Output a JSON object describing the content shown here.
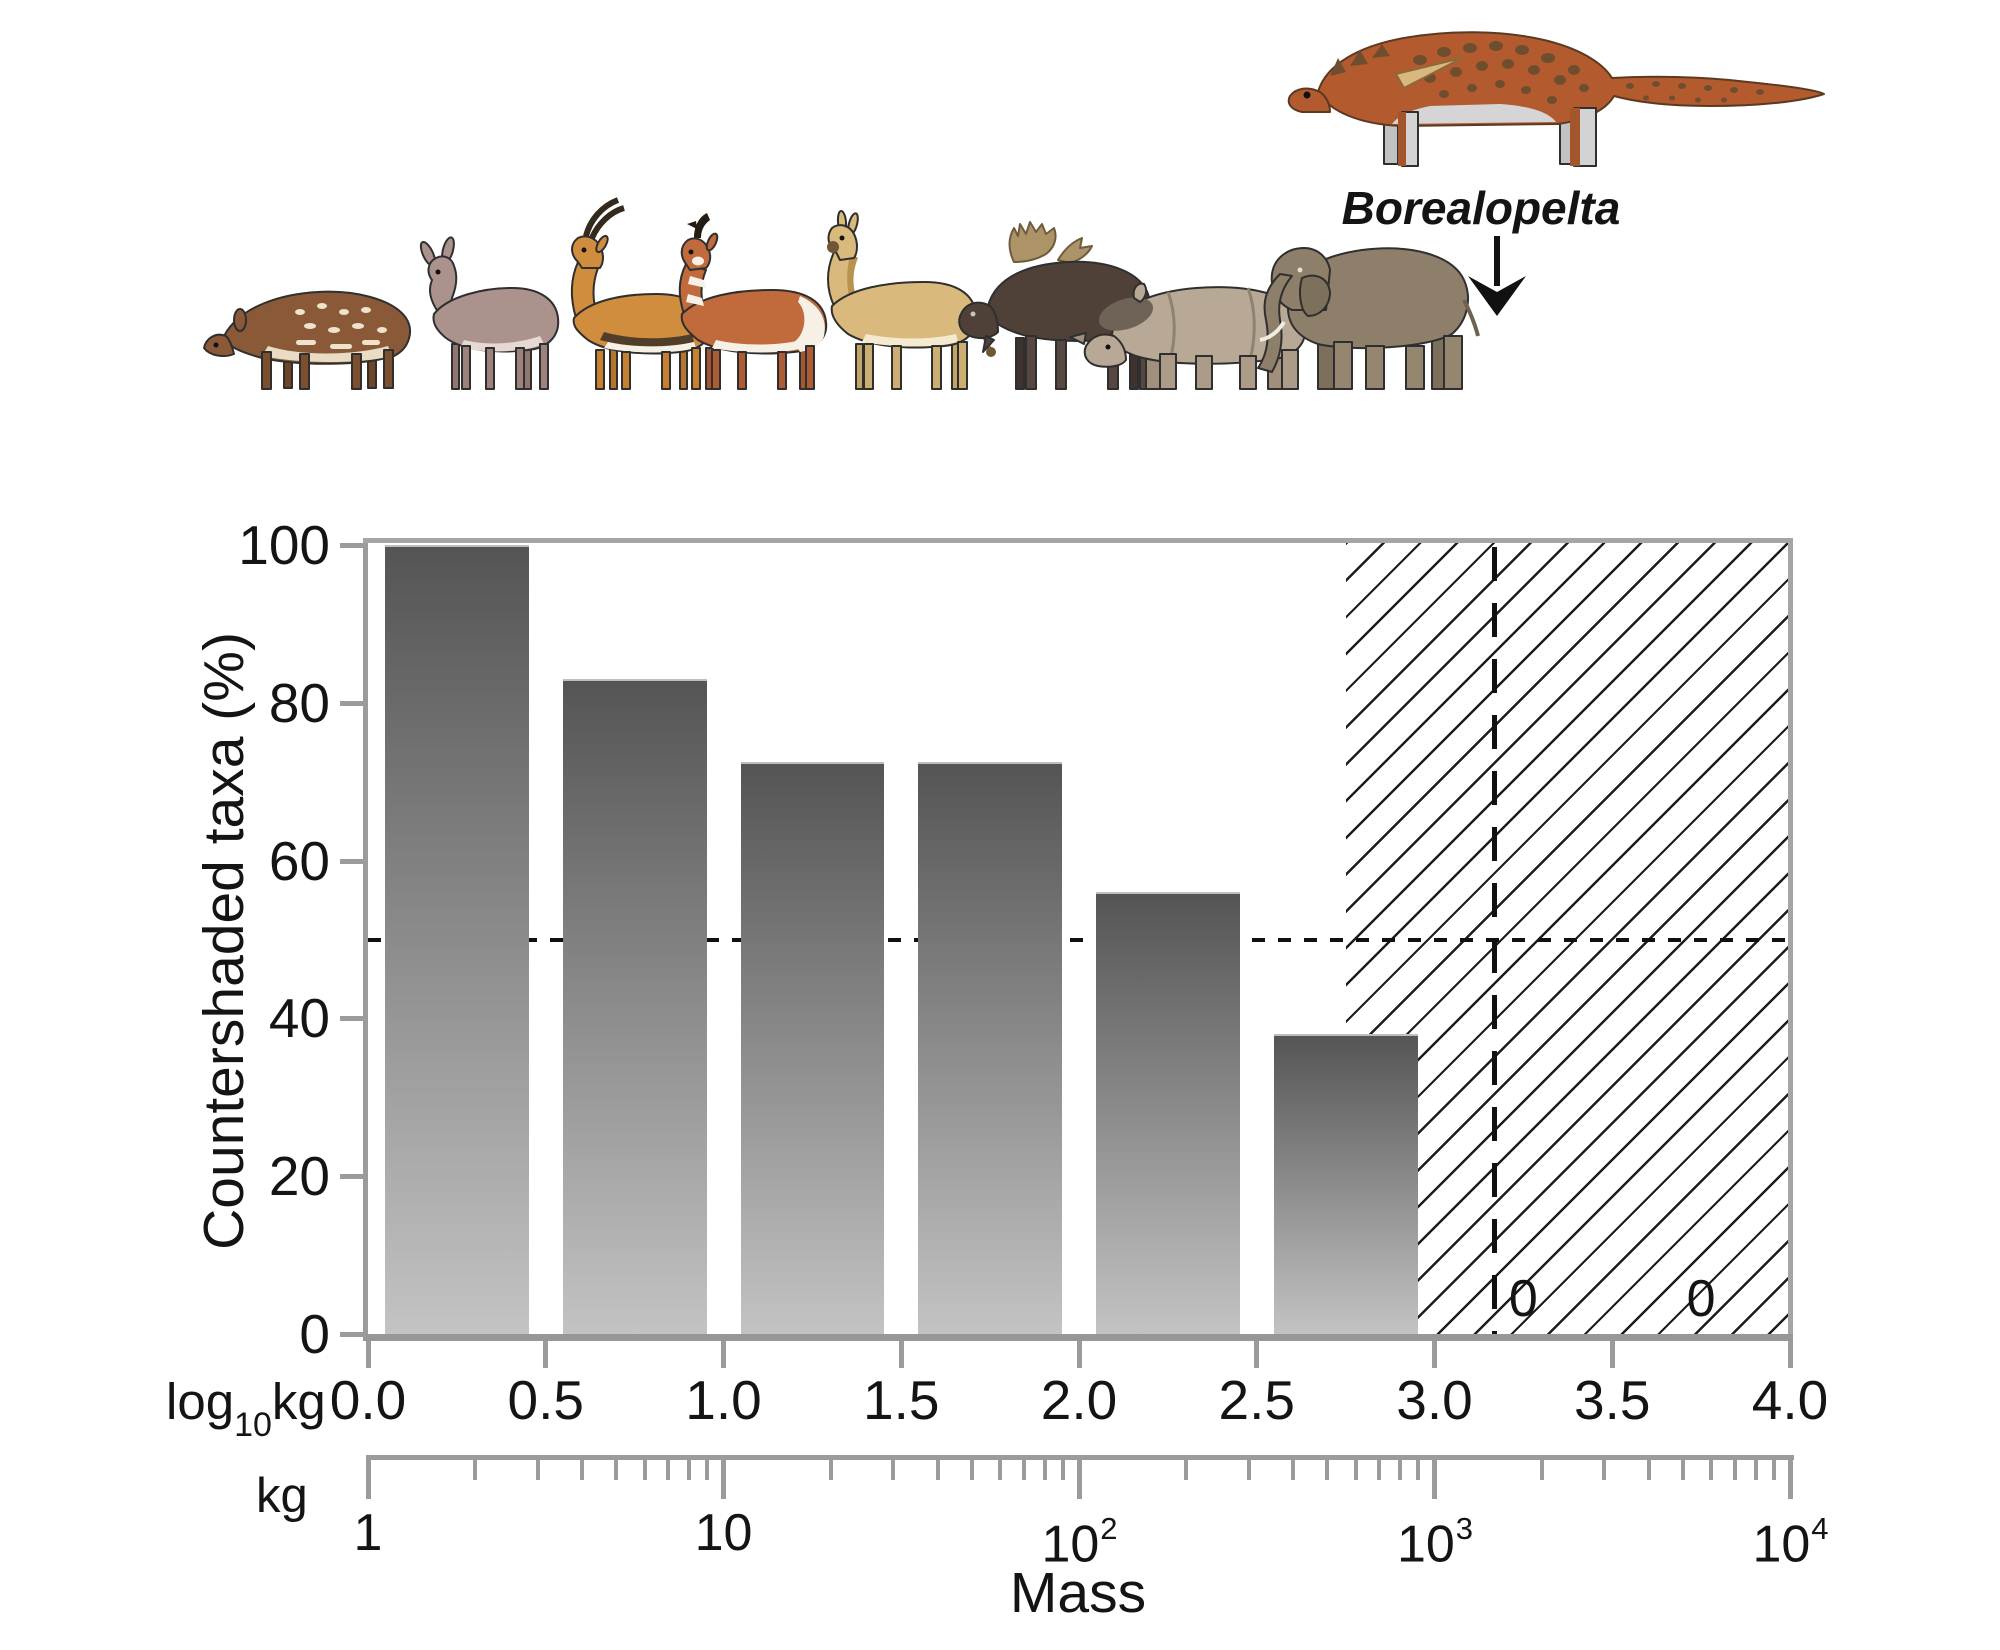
{
  "annotation": {
    "label": "Borealopelta"
  },
  "illustrations": {
    "top_right": "borealopelta-illustration",
    "mammal_row": [
      "chevrotain",
      "dwarf-antelope",
      "gazelle",
      "pronghorn",
      "wild-ass",
      "moose",
      "rhinoceros",
      "elephant"
    ]
  },
  "axes": {
    "y": {
      "title": "Countershaded taxa (%)",
      "ticks": [
        "0",
        "20",
        "40",
        "60",
        "80",
        "100"
      ]
    },
    "x_log": {
      "unit": {
        "prefix": "log",
        "sub": "10",
        "suffix": "kg"
      },
      "ticks": [
        "0.0",
        "0.5",
        "1.0",
        "1.5",
        "2.0",
        "2.5",
        "3.0",
        "3.5",
        "4.0"
      ]
    },
    "x_kg": {
      "unit_label": "kg",
      "axis_title": "Mass",
      "ticks": [
        {
          "base": "1"
        },
        {
          "base": "10"
        },
        {
          "base": "10",
          "exp": "2"
        },
        {
          "base": "10",
          "exp": "3"
        },
        {
          "base": "10",
          "exp": "4"
        }
      ]
    }
  },
  "chart_data": {
    "type": "bar",
    "title": "",
    "ylabel": "Countershaded taxa (%)",
    "xlabel": "Mass",
    "x_units": [
      "log10 kg",
      "kg"
    ],
    "x_bins_log10kg": [
      [
        0,
        0.5
      ],
      [
        0.5,
        1
      ],
      [
        1,
        1.5
      ],
      [
        1.5,
        2
      ],
      [
        2,
        2.5
      ],
      [
        2.5,
        3
      ],
      [
        3,
        3.5
      ],
      [
        3.5,
        4
      ]
    ],
    "values_percent": [
      100,
      83,
      72.5,
      72.5,
      56,
      38,
      0,
      0
    ],
    "zero_bin_label": "0",
    "ylim": [
      0,
      100
    ],
    "xlim_log10kg": [
      0,
      4
    ],
    "grid": false,
    "legend": false,
    "bar_gradient": [
      "#545454",
      "#c3c3c3"
    ],
    "reference_lines": {
      "horizontal_dotted_percent": 50,
      "vertical_dashed_log10kg": 3.17,
      "vertical_dashed_meaning": "Borealopelta mass"
    },
    "hatched_region_log10kg": [
      2.75,
      4
    ]
  }
}
